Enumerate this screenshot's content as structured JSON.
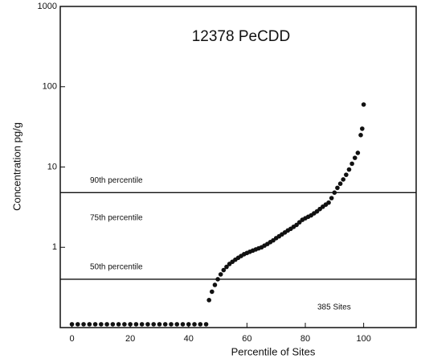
{
  "chart_data": {
    "type": "scatter",
    "title": "12378 PeCDD",
    "x_label": "Percentile of Sites",
    "y_label": "Concentration pg/g",
    "y_log": true,
    "color": "#111111",
    "xlim": [
      -4,
      118
    ],
    "ylim": [
      0.1,
      1000
    ],
    "xticks": [
      0,
      20,
      40,
      60,
      80,
      100
    ],
    "yticks": [
      1,
      10,
      100,
      1000
    ],
    "x": [
      0,
      2,
      4,
      6,
      8,
      10,
      12,
      14,
      16,
      18,
      20,
      22,
      24,
      26,
      28,
      30,
      32,
      34,
      36,
      38,
      40,
      42,
      44,
      46,
      47,
      48,
      49,
      50,
      51,
      52,
      53,
      54,
      55,
      56,
      57,
      58,
      59,
      60,
      61,
      62,
      63,
      64,
      65,
      66,
      67,
      68,
      69,
      70,
      71,
      72,
      73,
      74,
      75,
      76,
      77,
      78,
      79,
      80,
      81,
      82,
      83,
      84,
      85,
      86,
      87,
      88,
      89,
      90,
      91,
      92,
      93,
      94,
      95,
      96,
      97,
      98,
      99,
      99.5,
      100
    ],
    "values": [
      0.11,
      0.11,
      0.11,
      0.11,
      0.11,
      0.11,
      0.11,
      0.11,
      0.11,
      0.11,
      0.11,
      0.11,
      0.11,
      0.11,
      0.11,
      0.11,
      0.11,
      0.11,
      0.11,
      0.11,
      0.11,
      0.11,
      0.11,
      0.11,
      0.22,
      0.28,
      0.34,
      0.4,
      0.46,
      0.52,
      0.57,
      0.62,
      0.66,
      0.7,
      0.74,
      0.78,
      0.82,
      0.85,
      0.88,
      0.91,
      0.94,
      0.97,
      1.0,
      1.05,
      1.1,
      1.16,
      1.22,
      1.3,
      1.37,
      1.45,
      1.53,
      1.62,
      1.7,
      1.8,
      1.9,
      2.05,
      2.2,
      2.3,
      2.4,
      2.5,
      2.65,
      2.8,
      3.0,
      3.2,
      3.4,
      3.6,
      4.1,
      4.8,
      5.5,
      6.2,
      7.0,
      8.0,
      9.3,
      11,
      13,
      15,
      25,
      30,
      60
    ],
    "reference_lines": [
      {
        "value": 4.8,
        "label": "90th percentile"
      },
      {
        "value": 0.4,
        "label": "50th percentile"
      }
    ],
    "annotations": [
      "75th percentile",
      "385 Sites"
    ]
  }
}
